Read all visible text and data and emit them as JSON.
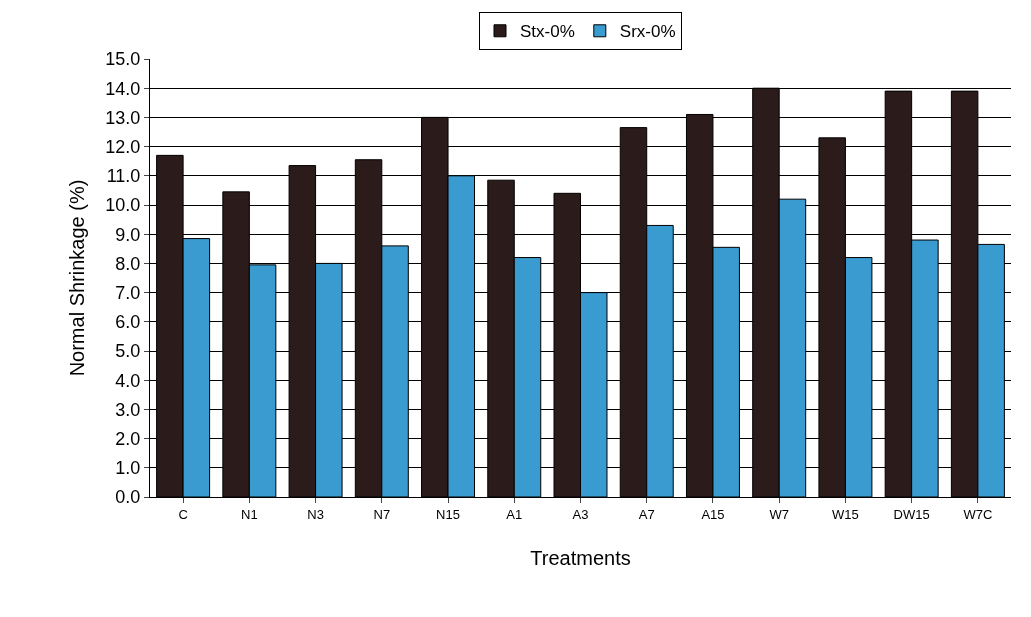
{
  "chart_data": {
    "type": "bar",
    "xlabel": "Treatments",
    "ylabel": "Normal Shrinkage (%)",
    "categories": [
      "C",
      "N1",
      "N3",
      "N7",
      "N15",
      "A1",
      "A3",
      "A7",
      "A15",
      "W7",
      "W15",
      "DW15",
      "W7C"
    ],
    "series": [
      {
        "name": "Stx-0%",
        "color": "#2b1b1b",
        "values": [
          11.7,
          10.45,
          11.35,
          11.55,
          13.0,
          10.85,
          10.4,
          12.65,
          13.1,
          14.0,
          12.3,
          13.9,
          13.9
        ]
      },
      {
        "name": "Srx-0%",
        "color": "#3a9bd0",
        "values": [
          8.85,
          7.95,
          8.0,
          8.6,
          11.0,
          8.2,
          7.0,
          9.3,
          8.55,
          10.2,
          8.2,
          8.8,
          8.65
        ]
      }
    ],
    "ylim": [
      0,
      15
    ],
    "yticks": [
      {
        "value": 0,
        "label": "0.0"
      },
      {
        "value": 1,
        "label": "1.0"
      },
      {
        "value": 2,
        "label": "2.0"
      },
      {
        "value": 3,
        "label": "3.0"
      },
      {
        "value": 4,
        "label": "4.0"
      },
      {
        "value": 5,
        "label": "5.0"
      },
      {
        "value": 6,
        "label": "6.0"
      },
      {
        "value": 7,
        "label": "7.0"
      },
      {
        "value": 8,
        "label": "8.0"
      },
      {
        "value": 9,
        "label": "9.0"
      },
      {
        "value": 10,
        "label": "10.0"
      },
      {
        "value": 11,
        "label": "11.0"
      },
      {
        "value": 12,
        "label": "12.0"
      },
      {
        "value": 13,
        "label": "13.0"
      },
      {
        "value": 14,
        "label": "14.0"
      },
      {
        "value": 15,
        "label": "15.0"
      }
    ],
    "grid": "y",
    "legend": "top"
  }
}
